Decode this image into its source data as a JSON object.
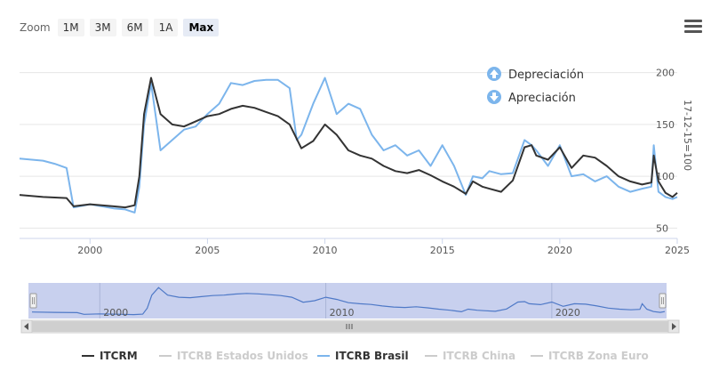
{
  "zoom": {
    "label": "Zoom",
    "buttons": [
      "1M",
      "3M",
      "6M",
      "1A",
      "Max"
    ],
    "active": "Max"
  },
  "menu_icon": "hamburger-icon",
  "annotations": [
    {
      "text": "Depreciación",
      "icon": "arrow-up-circle-icon",
      "color": "#7cb5ec"
    },
    {
      "text": "Apreciación",
      "icon": "arrow-down-circle-icon",
      "color": "#7cb5ec"
    }
  ],
  "axis_note": "17-12-15=100",
  "colors": {
    "itcrm": "#333333",
    "brasil": "#7cb5ec",
    "hidden": "#cccccc",
    "navigator_mask": "#c8d0ee",
    "navigator_line": "#4f79c7"
  },
  "chart_data": {
    "type": "line",
    "title": "",
    "xlabel": "",
    "ylabel": "",
    "xlim": [
      1997.0,
      2025.0
    ],
    "ylim": [
      40,
      210
    ],
    "y_ticks": [
      50,
      100,
      150,
      200
    ],
    "x_ticks": [
      "2000",
      "2005",
      "2010",
      "2015",
      "2020",
      "2025"
    ],
    "grid": true,
    "legend_position": "bottom",
    "series": [
      {
        "name": "ITCRM",
        "visible": true,
        "x": [
          1997.0,
          1998.0,
          1999.0,
          1999.3,
          2000.0,
          2001.0,
          2001.5,
          2001.9,
          2002.1,
          2002.3,
          2002.6,
          2003.0,
          2003.5,
          2004.0,
          2004.5,
          2005.0,
          2005.5,
          2006.0,
          2006.5,
          2007.0,
          2007.5,
          2008.0,
          2008.5,
          2009.0,
          2009.5,
          2010.0,
          2010.5,
          2011.0,
          2011.5,
          2012.0,
          2012.5,
          2013.0,
          2013.5,
          2014.0,
          2014.5,
          2015.0,
          2015.5,
          2016.0,
          2016.3,
          2016.7,
          2017.0,
          2017.5,
          2018.0,
          2018.5,
          2018.8,
          2019.0,
          2019.5,
          2020.0,
          2020.5,
          2021.0,
          2021.5,
          2022.0,
          2022.5,
          2023.0,
          2023.5,
          2023.9,
          2024.0,
          2024.2,
          2024.5,
          2024.8,
          2025.0
        ],
        "y": [
          82,
          80,
          79,
          71,
          73,
          71,
          70,
          72,
          100,
          160,
          195,
          160,
          150,
          148,
          153,
          158,
          160,
          165,
          168,
          166,
          162,
          158,
          150,
          127,
          134,
          150,
          140,
          125,
          120,
          117,
          110,
          105,
          103,
          106,
          101,
          95,
          90,
          83,
          95,
          90,
          88,
          85,
          96,
          128,
          130,
          120,
          116,
          128,
          108,
          120,
          118,
          110,
          100,
          95,
          92,
          94,
          120,
          95,
          84,
          80,
          84
        ]
      },
      {
        "name": "ITCRB Estados Unidos",
        "visible": false,
        "x": [],
        "y": []
      },
      {
        "name": "ITCRB Brasil",
        "visible": true,
        "x": [
          1997.0,
          1998.0,
          1998.5,
          1999.0,
          1999.3,
          2000.0,
          2001.0,
          2001.5,
          2001.9,
          2002.1,
          2002.3,
          2002.6,
          2003.0,
          2003.5,
          2004.0,
          2004.5,
          2005.0,
          2005.5,
          2006.0,
          2006.5,
          2007.0,
          2007.5,
          2008.0,
          2008.5,
          2008.8,
          2009.0,
          2009.5,
          2010.0,
          2010.5,
          2011.0,
          2011.5,
          2012.0,
          2012.5,
          2013.0,
          2013.5,
          2014.0,
          2014.5,
          2015.0,
          2015.5,
          2016.0,
          2016.3,
          2016.7,
          2017.0,
          2017.5,
          2018.0,
          2018.5,
          2018.8,
          2019.0,
          2019.5,
          2020.0,
          2020.5,
          2021.0,
          2021.5,
          2022.0,
          2022.5,
          2023.0,
          2023.5,
          2023.9,
          2024.0,
          2024.2,
          2024.5,
          2024.8,
          2025.0
        ],
        "y": [
          117,
          115,
          112,
          108,
          70,
          73,
          69,
          68,
          65,
          90,
          150,
          190,
          125,
          135,
          145,
          148,
          160,
          170,
          190,
          188,
          192,
          193,
          193,
          185,
          135,
          140,
          170,
          195,
          160,
          170,
          165,
          140,
          125,
          130,
          120,
          125,
          110,
          130,
          110,
          82,
          100,
          98,
          105,
          102,
          103,
          135,
          130,
          125,
          110,
          130,
          100,
          102,
          95,
          100,
          90,
          85,
          88,
          90,
          130,
          85,
          80,
          78,
          80
        ]
      },
      {
        "name": "ITCRB China",
        "visible": false,
        "x": [],
        "y": []
      },
      {
        "name": "ITCRB Zona Euro",
        "visible": false,
        "x": [],
        "y": []
      }
    ],
    "navigator": {
      "x_ticks": [
        "2000",
        "2010",
        "2020"
      ]
    }
  }
}
